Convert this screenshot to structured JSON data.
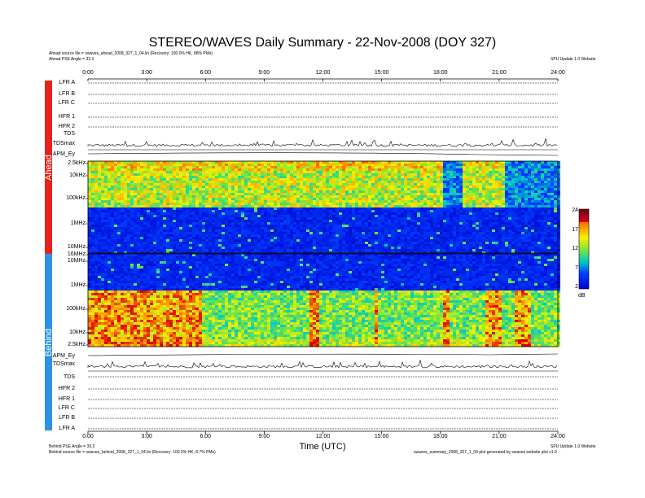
{
  "header": {
    "title": "STEREO/WAVES Daily Summary - 22-Nov-2008 (DOY 327)",
    "ahead_source": "Ahead source file = swaves_ahead_2008_327_1_04.lin (Recovery: 100.0% HK, 88% PMs)",
    "ahead_angle": "Ahead PSE Angle = 33.3",
    "top_right": "SPU Update 1.0 Website"
  },
  "footer": {
    "behind_angle": "Behind PSE Angle = 33.3",
    "behind_source": "Behind source file = swaves_behind_2008_327_1_04.lin (Recovery: 100.0% HK, 8.7% PMs)",
    "bottom_right1": "SPU Update 1.0 Website",
    "bottom_right2": "swaves_summary_2008_327_1_04 plot generated by swaves website plot v1.0"
  },
  "side_bars": {
    "ahead_label": "Ahead",
    "behind_label": "Behind",
    "ahead_color": "#e8211c",
    "behind_color": "#2a93e8"
  },
  "colorbar": {
    "ticks": [
      "24",
      "17",
      "12",
      "7",
      "2"
    ],
    "unit": "dB"
  },
  "chart_data": {
    "type": "heatmap",
    "xlabel": "Time (UTC)",
    "x_ticks": [
      "0:00",
      "3:00",
      "6:00",
      "9:00",
      "12:00",
      "15:00",
      "18:00",
      "21:00",
      "24:00"
    ],
    "xlim": [
      0,
      24
    ],
    "ahead_rows": [
      "LFR A",
      "LFR B",
      "LFR C",
      "HFR 1",
      "HFR 2",
      "TDS",
      "TDSmax",
      "APM_Ey"
    ],
    "behind_rows": [
      "APM_Ey",
      "TDSmax",
      "TDS",
      "HFR 2",
      "HFR 1",
      "LFR C",
      "LFR B",
      "LFR A"
    ],
    "ahead_freq_ticks": [
      "2.5kHz",
      "10kHz",
      "100kHz",
      "1MHz",
      "10MHz",
      "16MHz",
      "10MHz"
    ],
    "behind_freq_ticks": [
      "1MHz",
      "100kHz",
      "10kHz",
      "2.5kHz"
    ],
    "ahead_quiet_intervals": [
      [
        18.0,
        19.0
      ],
      [
        21.2,
        24.0
      ]
    ],
    "behind_active_intervals": [
      [
        0.0,
        5.8
      ],
      [
        11.3,
        11.7
      ],
      [
        14.5,
        14.8
      ],
      [
        18.0,
        18.4
      ],
      [
        20.2,
        21.0
      ],
      [
        21.7,
        22.6
      ]
    ],
    "color_range": [
      2,
      24
    ],
    "color_unit": "dB"
  }
}
